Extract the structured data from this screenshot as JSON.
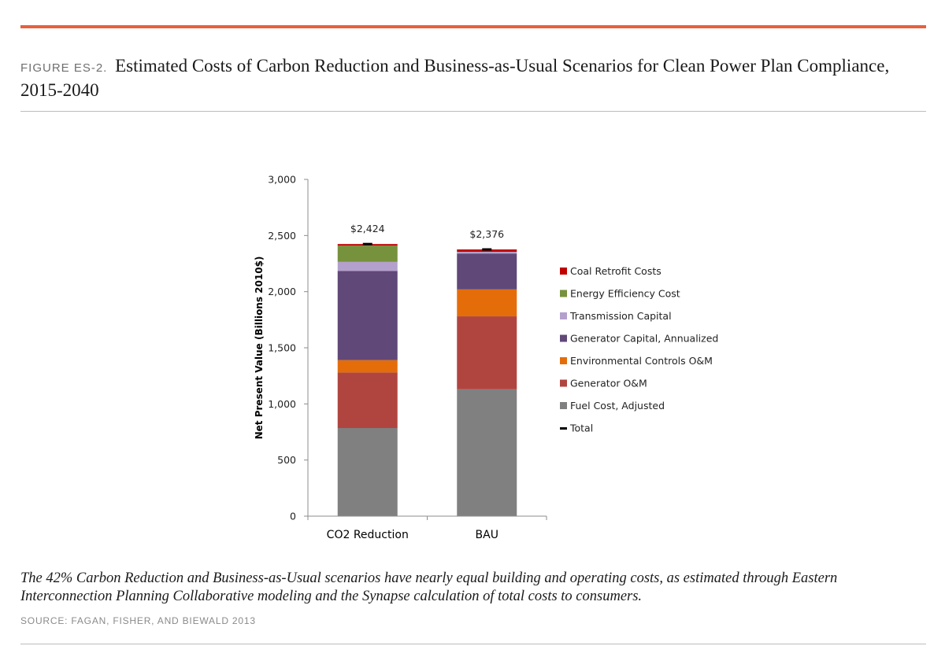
{
  "figure": {
    "label": "FIGURE ES-2.",
    "title": "Estimated Costs of Carbon Reduction and Business-as-Usual Scenarios for Clean Power Plan Compliance, 2015-2040",
    "caption": "The 42% Carbon Reduction and Business-as-Usual scenarios have nearly equal building and operating costs, as estimated through Eastern Interconnection Planning Collaborative modeling and the Synapse calculation of total costs to consumers.",
    "source": "SOURCE: FAGAN, FISHER, AND BIEWALD 2013"
  },
  "colors": {
    "accent_rule": "#e8603c"
  },
  "chart_data": {
    "type": "bar",
    "stacked": true,
    "categories": [
      "CO2 Reduction",
      "BAU"
    ],
    "ylabel": "Net Present Value (Billions 2010$)",
    "ylim": [
      0,
      3000
    ],
    "yticks": [
      0,
      500,
      1000,
      1500,
      2000,
      2500,
      3000
    ],
    "ytick_labels": [
      "0",
      "500",
      "1,000",
      "1,500",
      "2,000",
      "2,500",
      "3,000"
    ],
    "grid": false,
    "legend_position": "right",
    "series": [
      {
        "name": "Fuel Cost, Adjusted",
        "color": "#808080",
        "values": [
          785,
          1130
        ]
      },
      {
        "name": "Generator O&M",
        "color": "#b04540",
        "values": [
          495,
          650
        ]
      },
      {
        "name": "Environmental Controls O&M",
        "color": "#e46d0a",
        "values": [
          110,
          240
        ]
      },
      {
        "name": "Generator Capital, Annualized",
        "color": "#604878",
        "values": [
          795,
          320
        ]
      },
      {
        "name": "Transmission Capital",
        "color": "#b4a0cc",
        "values": [
          80,
          15
        ]
      },
      {
        "name": "Energy Efficiency Cost",
        "color": "#76923c",
        "values": [
          145,
          0
        ]
      },
      {
        "name": "Coal Retrofit Costs",
        "color": "#c00000",
        "values": [
          14,
          21
        ]
      }
    ],
    "totals": [
      2424,
      2376
    ],
    "total_labels": [
      "$2,424",
      "$2,376"
    ],
    "total_legend": {
      "name": "Total",
      "color": "#000000"
    }
  }
}
